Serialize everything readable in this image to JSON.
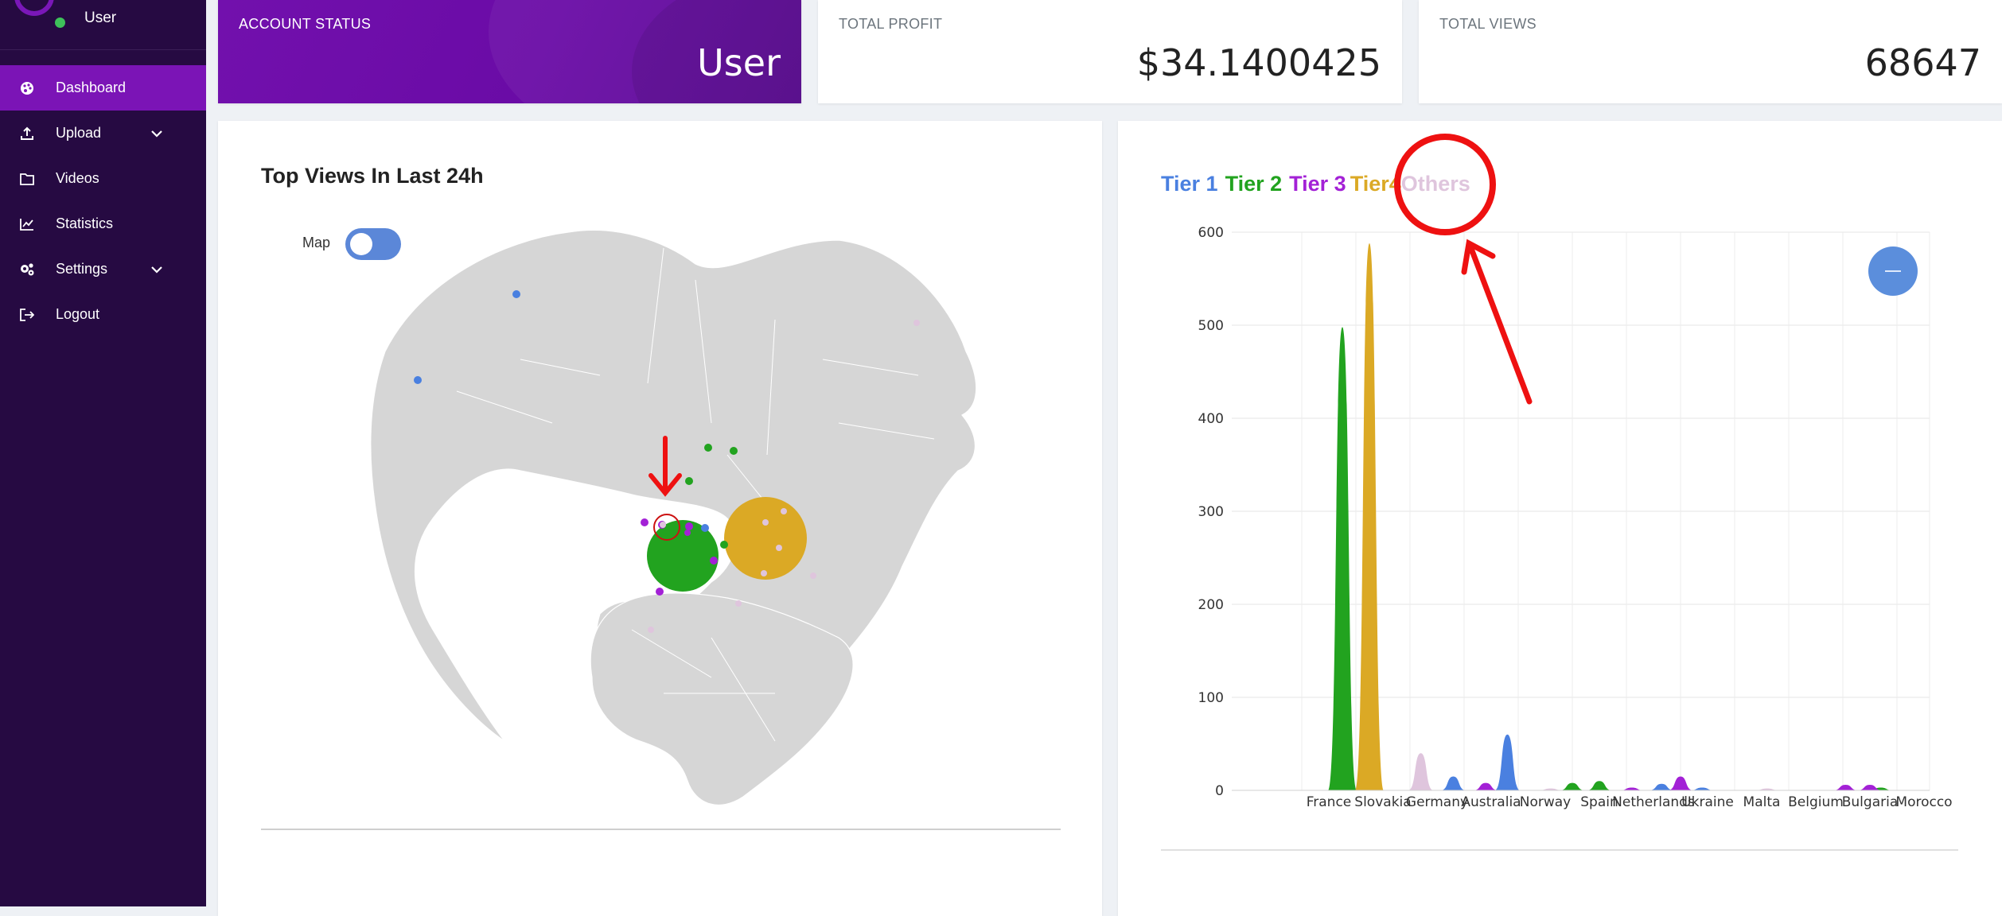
{
  "sidebar": {
    "username": "User",
    "items": [
      {
        "label": "Dashboard",
        "icon": "palette-icon",
        "active": true
      },
      {
        "label": "Upload",
        "icon": "upload-icon",
        "has_submenu": true
      },
      {
        "label": "Videos",
        "icon": "folder-icon"
      },
      {
        "label": "Statistics",
        "icon": "line-chart-icon"
      },
      {
        "label": "Settings",
        "icon": "cogs-icon",
        "has_submenu": true
      },
      {
        "label": "Logout",
        "icon": "logout-icon"
      }
    ]
  },
  "stats": {
    "account_status": {
      "label": "ACCOUNT STATUS",
      "value": "User"
    },
    "total_profit": {
      "label": "TOTAL PROFIT",
      "value": "$34.1400425"
    },
    "total_views": {
      "label": "TOTAL VIEWS",
      "value": "68647"
    }
  },
  "map_panel": {
    "title": "Top Views In Last 24h",
    "toggle_label": "Map",
    "toggle_on": true
  },
  "chart_panel": {
    "legend": [
      {
        "label": "Tier 1",
        "color": "#4a80e0"
      },
      {
        "label": "Tier 2",
        "color": "#22a31f"
      },
      {
        "label": "Tier 3",
        "color": "#a321d6"
      },
      {
        "label": "Tier4",
        "color": "#dba925"
      },
      {
        "label": "Others",
        "color": "#dfc5dd"
      }
    ]
  },
  "colors": {
    "sidebar_bg": "#260a42",
    "accent_purple": "#7b14b6",
    "annotation_red": "#ee1111"
  },
  "chart_data": {
    "type": "area",
    "title": "",
    "xlabel": "",
    "ylabel": "",
    "ylim": [
      0,
      600
    ],
    "yticks": [
      0,
      100,
      200,
      300,
      400,
      500,
      600
    ],
    "categories": [
      "France",
      "Slovakia",
      "Germany",
      "Australia",
      "Norway",
      "Spain",
      "Netherlands",
      "Ukraine",
      "Malta",
      "Belgium",
      "Bulgaria",
      "Morocco"
    ],
    "grid": true,
    "series": [
      {
        "name": "Tier 1",
        "color": "#4a80e0",
        "peaks": [
          {
            "x": 2.3,
            "y": 15
          },
          {
            "x": 3.3,
            "y": 60
          },
          {
            "x": 6.15,
            "y": 7
          },
          {
            "x": 6.9,
            "y": 3
          }
        ]
      },
      {
        "name": "Tier 2",
        "color": "#22a31f",
        "peaks": [
          {
            "x": 0.25,
            "y": 498
          },
          {
            "x": 4.5,
            "y": 8
          },
          {
            "x": 5.0,
            "y": 10
          },
          {
            "x": 10.2,
            "y": 3
          }
        ]
      },
      {
        "name": "Tier 3",
        "color": "#a321d6",
        "peaks": [
          {
            "x": 2.9,
            "y": 8
          },
          {
            "x": 5.6,
            "y": 3
          },
          {
            "x": 6.5,
            "y": 15
          },
          {
            "x": 9.55,
            "y": 6
          },
          {
            "x": 10.0,
            "y": 6
          }
        ]
      },
      {
        "name": "Tier4",
        "color": "#dba925",
        "peaks": [
          {
            "x": 0.75,
            "y": 588
          }
        ]
      },
      {
        "name": "Others",
        "color": "#dfc5dd",
        "peaks": [
          {
            "x": 1.7,
            "y": 40
          },
          {
            "x": 4.1,
            "y": 2
          },
          {
            "x": 8.1,
            "y": 2
          }
        ]
      }
    ]
  }
}
